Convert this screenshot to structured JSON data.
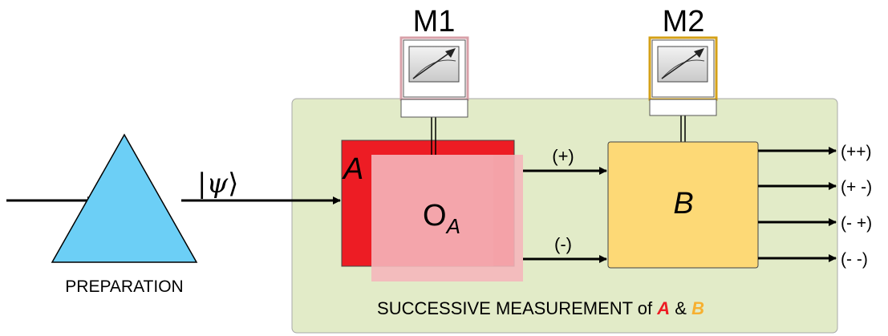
{
  "meters": {
    "m1": {
      "label": "M1"
    },
    "m2": {
      "label": "M2"
    }
  },
  "preparation": {
    "label": "PREPARATION"
  },
  "state": {
    "ket_open": "|",
    "psi": "ψ",
    "ket_close": "⟩"
  },
  "box_a": {
    "label": "A"
  },
  "overlay": {
    "main": "O",
    "subscript": "A"
  },
  "box_b": {
    "label": "B"
  },
  "branch_labels": {
    "plus": "(+)",
    "minus": "(-)"
  },
  "outputs": [
    "(++)",
    "(+ -)",
    "(- +)",
    "(- -)"
  ],
  "caption": {
    "prefix": "SUCCESSIVE MEASUREMENT of ",
    "a": "A",
    "amp": " & ",
    "b": "B"
  },
  "colors": {
    "measurement_panel": "#e2ebc8",
    "triangle": "#6ccff6",
    "box_a": "#ed1c24",
    "overlay": "#f6aeb4",
    "box_b": "#fdd976",
    "meter_m2_border": "#d4a017",
    "meter_m1_border": "#d8a0a8"
  },
  "icons": {
    "meter": "analog-meter-icon"
  }
}
